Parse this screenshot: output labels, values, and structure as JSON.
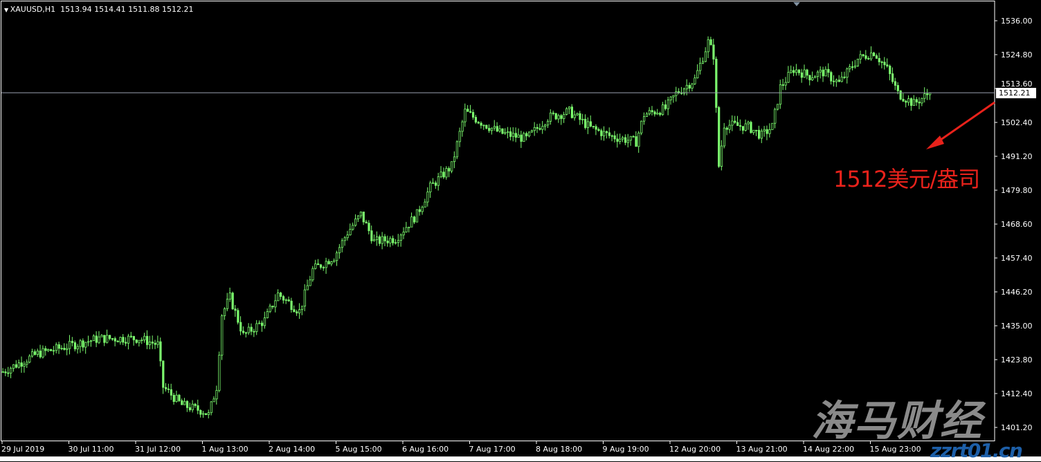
{
  "header": {
    "symbol": "XAUUSD,H1",
    "ohlc": "1513.94 1514.41 1511.88 1512.21"
  },
  "annotation": {
    "text": "1512美元/盎司",
    "color": "#e8221b"
  },
  "watermark": {
    "logo": "海马财经",
    "site": "zzrt01.cn"
  },
  "colors": {
    "background": "#000000",
    "candle": "#7CFC6E",
    "axis": "#ffffff",
    "bid_line": "#9aa0b0"
  },
  "chart_data": {
    "type": "candlestick",
    "symbol": "XAUUSD",
    "timeframe": "H1",
    "current_price": 1512.21,
    "current_price_label": "1512.21",
    "ylim": [
      1396,
      1540
    ],
    "y_ticks": [
      "1536.00",
      "1524.80",
      "1513.60",
      "1502.40",
      "1491.20",
      "1479.80",
      "1468.60",
      "1457.40",
      "1446.20",
      "1435.00",
      "1423.80",
      "1412.40",
      "1401.20"
    ],
    "x_ticks": [
      "29 Jul 2019",
      "30 Jul 11:00",
      "31 Jul 12:00",
      "1 Aug 13:00",
      "2 Aug 14:00",
      "5 Aug 15:00",
      "6 Aug 16:00",
      "7 Aug 17:00",
      "8 Aug 18:00",
      "9 Aug 19:00",
      "12 Aug 20:00",
      "13 Aug 21:00",
      "14 Aug 22:00",
      "15 Aug 23:00"
    ],
    "bars_per_tick": 25,
    "close_path": [
      [
        0,
        1420
      ],
      [
        13,
        1426
      ],
      [
        25,
        1428.6
      ],
      [
        36,
        1431
      ],
      [
        51,
        1431
      ],
      [
        58,
        1429
      ],
      [
        60,
        1415
      ],
      [
        67,
        1409
      ],
      [
        75,
        1407
      ],
      [
        77,
        1405.7
      ],
      [
        80,
        1415
      ],
      [
        82,
        1439
      ],
      [
        85,
        1444.6
      ],
      [
        90,
        1432
      ],
      [
        98,
        1437
      ],
      [
        103,
        1445.7
      ],
      [
        111,
        1440
      ],
      [
        116,
        1453.7
      ],
      [
        124,
        1458
      ],
      [
        129,
        1466
      ],
      [
        134,
        1472
      ],
      [
        139,
        1463
      ],
      [
        147,
        1464
      ],
      [
        155,
        1472
      ],
      [
        160,
        1481
      ],
      [
        168,
        1488
      ],
      [
        173,
        1506
      ],
      [
        178,
        1503
      ],
      [
        186,
        1499
      ],
      [
        196,
        1497
      ],
      [
        204,
        1504
      ],
      [
        212,
        1506
      ],
      [
        220,
        1500.6
      ],
      [
        227,
        1498
      ],
      [
        237,
        1496
      ],
      [
        240,
        1505
      ],
      [
        248,
        1507
      ],
      [
        252,
        1512
      ],
      [
        259,
        1516.6
      ],
      [
        264,
        1529
      ],
      [
        266,
        1524.6
      ],
      [
        268,
        1488
      ],
      [
        270,
        1501.7
      ],
      [
        279,
        1501
      ],
      [
        284,
        1498
      ],
      [
        288,
        1501
      ],
      [
        291,
        1514
      ],
      [
        296,
        1520
      ],
      [
        302,
        1517.7
      ],
      [
        307,
        1519
      ],
      [
        313,
        1515.4
      ],
      [
        320,
        1523.4
      ],
      [
        326,
        1525.7
      ],
      [
        331,
        1520
      ],
      [
        335,
        1512
      ],
      [
        341,
        1508.6
      ],
      [
        347,
        1512.21
      ]
    ]
  }
}
